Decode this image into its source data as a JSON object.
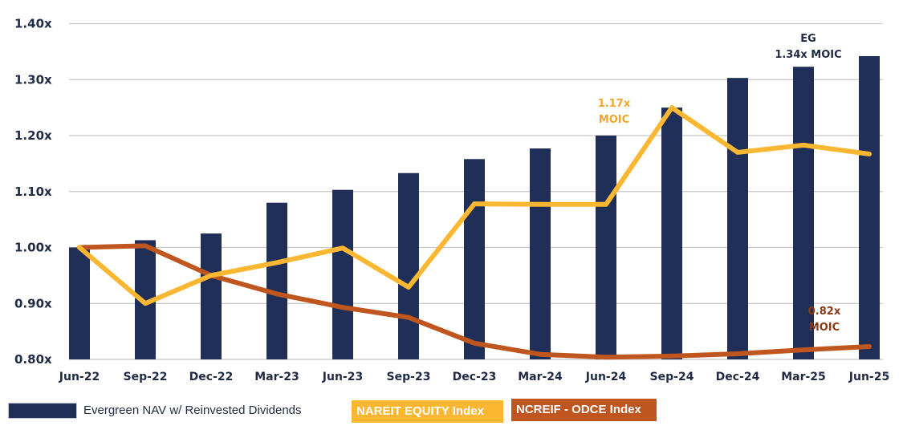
{
  "chart_data": {
    "type": "bar+line",
    "categories": [
      "Jun-22",
      "Sep-22",
      "Dec-22",
      "Mar-23",
      "Jun-23",
      "Sep-23",
      "Dec-23",
      "Mar-24",
      "Jun-24",
      "Sep-24",
      "Dec-24",
      "Mar-25",
      "Jun-25"
    ],
    "ylim": [
      0.8,
      1.4
    ],
    "yticks": [
      "0.80x",
      "0.90x",
      "1.00x",
      "1.10x",
      "1.20x",
      "1.30x",
      "1.40x"
    ],
    "ytick_values": [
      0.8,
      0.9,
      1.0,
      1.1,
      1.2,
      1.3,
      1.4
    ],
    "grid": true,
    "legend_position": "bottom",
    "series": [
      {
        "name": "Evergreen NAV w/ Reinvested Dividends",
        "type": "bar",
        "color": "#1f2f57",
        "values": [
          1.0,
          1.013,
          1.025,
          1.08,
          1.103,
          1.133,
          1.158,
          1.177,
          1.2,
          1.25,
          1.303,
          1.323,
          1.342
        ]
      },
      {
        "name": "NAREIT EQUITY Index",
        "type": "line",
        "color": "#fbb731",
        "values": [
          1.0,
          0.9,
          0.95,
          0.973,
          0.999,
          0.929,
          1.078,
          1.077,
          1.077,
          1.25,
          1.17,
          1.183,
          1.167
        ]
      },
      {
        "name": "NCREIF - ODCE Index",
        "type": "line",
        "color": "#c0561f",
        "values": [
          1.0,
          1.003,
          0.95,
          0.917,
          0.893,
          0.875,
          0.829,
          0.809,
          0.804,
          0.806,
          0.81,
          0.817,
          0.823
        ]
      }
    ],
    "annotations": [
      {
        "lines": [
          "EG",
          "1.34x MOIC"
        ],
        "color": "#1f2a44"
      },
      {
        "lines": [
          "1.17x",
          "MOIC"
        ],
        "color": "#f0a62a"
      },
      {
        "lines": [
          "0.82x",
          "MOIC"
        ],
        "color": "#8a3a12"
      }
    ]
  }
}
